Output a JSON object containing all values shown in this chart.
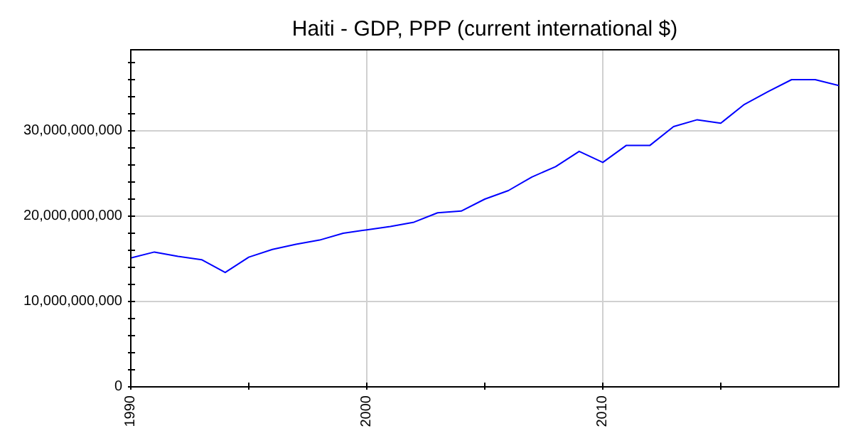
{
  "chart_data": {
    "type": "line",
    "title": "Haiti - GDP, PPP (current international $)",
    "x": [
      1990,
      1991,
      1992,
      1993,
      1994,
      1995,
      1996,
      1997,
      1998,
      1999,
      2000,
      2001,
      2002,
      2003,
      2004,
      2005,
      2006,
      2007,
      2008,
      2009,
      2010,
      2011,
      2012,
      2013,
      2014,
      2015,
      2016,
      2017,
      2018,
      2019,
      2020
    ],
    "series": [
      {
        "color": "#0000ff",
        "values": [
          15100000000,
          15800000000,
          15300000000,
          14900000000,
          13400000000,
          15200000000,
          16100000000,
          16700000000,
          17200000000,
          18000000000,
          18400000000,
          18800000000,
          19300000000,
          20400000000,
          20600000000,
          22000000000,
          23000000000,
          24600000000,
          25800000000,
          27600000000,
          26300000000,
          28300000000,
          28300000000,
          30500000000,
          31300000000,
          30900000000,
          33100000000,
          34600000000,
          36000000000,
          36000000000,
          35300000000
        ]
      }
    ],
    "xlim": [
      1990,
      2020
    ],
    "xticks": [
      1990,
      {
        "value": 1995,
        "label": null
      },
      2000,
      {
        "value": 2005,
        "label": null
      },
      2010,
      {
        "value": 2015,
        "label": null
      }
    ],
    "ylim": [
      0,
      39500000000
    ],
    "yticks": [
      {
        "value": 0,
        "label": "0"
      },
      {
        "value": 2000000000,
        "label": null
      },
      {
        "value": 4000000000,
        "label": null
      },
      {
        "value": 6000000000,
        "label": null
      },
      {
        "value": 8000000000,
        "label": null
      },
      {
        "value": 10000000000,
        "label": "10,000,000,000"
      },
      {
        "value": 12000000000,
        "label": null
      },
      {
        "value": 14000000000,
        "label": null
      },
      {
        "value": 16000000000,
        "label": null
      },
      {
        "value": 18000000000,
        "label": null
      },
      {
        "value": 20000000000,
        "label": "20,000,000,000"
      },
      {
        "value": 22000000000,
        "label": null
      },
      {
        "value": 24000000000,
        "label": null
      },
      {
        "value": 26000000000,
        "label": null
      },
      {
        "value": 28000000000,
        "label": null
      },
      {
        "value": 30000000000,
        "label": "30,000,000,000"
      },
      {
        "value": 32000000000,
        "label": null
      },
      {
        "value": 34000000000,
        "label": null
      },
      {
        "value": 36000000000,
        "label": null
      },
      {
        "value": 38000000000,
        "label": null
      }
    ],
    "grid": true,
    "marker": "none",
    "line_style": "solid",
    "legend": false
  }
}
